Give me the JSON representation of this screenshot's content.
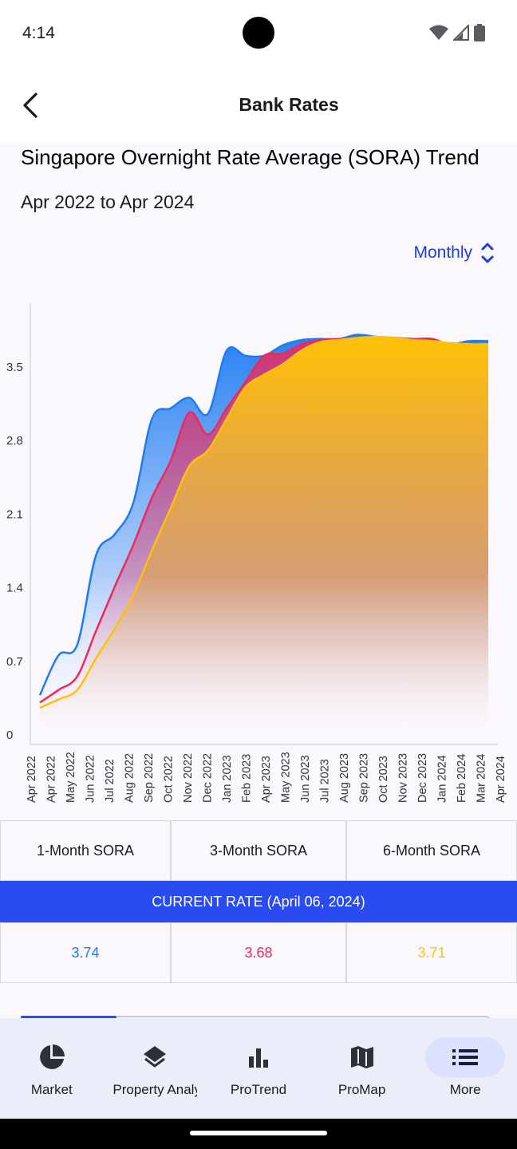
{
  "status": {
    "time": "4:14"
  },
  "header": {
    "title": "Bank Rates"
  },
  "chart_section": {
    "title": "Singapore Overnight Rate Average (SORA) Trend",
    "subtitle": "Apr 2022 to Apr 2024",
    "period_select": "Monthly"
  },
  "chart_data": {
    "type": "area",
    "title": "Singapore Overnight Rate Average (SORA) Trend",
    "subtitle": "Apr 2022 to Apr 2024",
    "xlabel": "",
    "ylabel": "",
    "ylim": [
      0,
      4.2
    ],
    "yticks": [
      "0",
      "0.7",
      "1.4",
      "2.1",
      "2.8",
      "3.5"
    ],
    "ytick_values": [
      0,
      0.7,
      1.4,
      2.1,
      2.8,
      3.5
    ],
    "categories": [
      "Apr 2022",
      "Apr 2022",
      "May 2022",
      "Jun 2022",
      "Jul 2022",
      "Aug 2022",
      "Sep 2022",
      "Oct 2022",
      "Nov 2022",
      "Dec 2022",
      "Jan 2023",
      "Feb 2023",
      "Apr 2023",
      "May 2023",
      "Jun 2023",
      "Jul 2023",
      "Aug 2023",
      "Sep 2023",
      "Oct 2023",
      "Nov 2023",
      "Dec 2023",
      "Jan 2024",
      "Feb 2024",
      "Mar 2024",
      "Apr 2024"
    ],
    "series": [
      {
        "name": "1-Month SORA",
        "color": "#1e7bf2",
        "values": [
          0.37,
          0.75,
          0.85,
          1.7,
          1.9,
          2.2,
          3.0,
          3.1,
          3.2,
          3.05,
          3.65,
          3.6,
          3.6,
          3.7,
          3.75,
          3.76,
          3.76,
          3.8,
          3.78,
          3.77,
          3.76,
          3.75,
          3.71,
          3.74,
          3.74
        ]
      },
      {
        "name": "3-Month SORA",
        "color": "#f0285a",
        "values": [
          0.3,
          0.42,
          0.55,
          0.98,
          1.4,
          1.8,
          2.25,
          2.6,
          3.06,
          2.85,
          3.1,
          3.35,
          3.6,
          3.62,
          3.71,
          3.75,
          3.76,
          3.77,
          3.78,
          3.77,
          3.76,
          3.76,
          3.7,
          3.7,
          3.68
        ]
      },
      {
        "name": "6-Month SORA",
        "color": "#ffc107",
        "values": [
          0.25,
          0.33,
          0.42,
          0.72,
          1.0,
          1.32,
          1.75,
          2.15,
          2.55,
          2.7,
          3.0,
          3.3,
          3.42,
          3.52,
          3.65,
          3.73,
          3.75,
          3.77,
          3.78,
          3.77,
          3.75,
          3.74,
          3.72,
          3.71,
          3.71
        ]
      }
    ],
    "grid": false,
    "legend": "none"
  },
  "table": {
    "headers": [
      "1-Month SORA",
      "3-Month SORA",
      "6-Month SORA"
    ],
    "current_label": "CURRENT RATE (April 06, 2024)",
    "values": [
      "3.74",
      "3.68",
      "3.71"
    ],
    "value_colors": [
      "#1e7bf2",
      "#f0285a",
      "#ffc107"
    ]
  },
  "nav": {
    "items": [
      {
        "label": "Market",
        "icon": "pie-chart-icon"
      },
      {
        "label": "Property Analysis",
        "icon": "layers-icon"
      },
      {
        "label": "ProTrend",
        "icon": "bar-chart-icon"
      },
      {
        "label": "ProMap",
        "icon": "map-icon"
      },
      {
        "label": "More",
        "icon": "list-icon"
      }
    ]
  }
}
